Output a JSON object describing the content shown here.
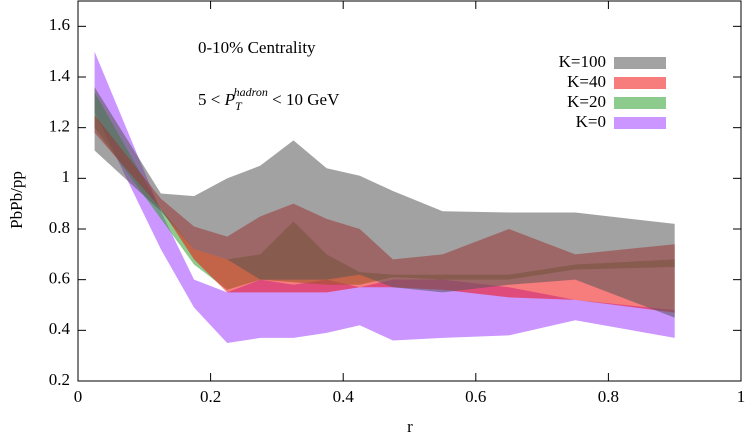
{
  "chart_data": {
    "type": "band",
    "x_label": "r",
    "y_label": "PbPb/pp",
    "annotations": [
      "0-10% Centrality",
      [
        "5 < ",
        "P",
        "T",
        "hadron",
        " < 10 GeV"
      ]
    ],
    "x": [
      0.025,
      0.125,
      0.175,
      0.225,
      0.275,
      0.325,
      0.375,
      0.425,
      0.475,
      0.55,
      0.65,
      0.75,
      0.9
    ],
    "series": [
      {
        "name": "K=100",
        "color": "#555555",
        "upper": [
          1.36,
          0.94,
          0.93,
          1.0,
          1.05,
          1.15,
          1.04,
          1.01,
          0.95,
          0.87,
          0.865,
          0.865,
          0.82
        ],
        "lower": [
          1.11,
          0.87,
          0.72,
          0.68,
          0.6,
          0.6,
          0.6,
          0.62,
          0.57,
          0.55,
          0.58,
          0.6,
          0.45
        ]
      },
      {
        "name": "K=40",
        "color": "#f01010",
        "upper": [
          1.25,
          0.92,
          0.81,
          0.77,
          0.85,
          0.9,
          0.84,
          0.8,
          0.68,
          0.7,
          0.8,
          0.7,
          0.74
        ],
        "lower": [
          1.18,
          0.88,
          0.68,
          0.55,
          0.55,
          0.55,
          0.55,
          0.57,
          0.57,
          0.56,
          0.53,
          0.52,
          0.47
        ]
      },
      {
        "name": "K=20",
        "color": "#30a030",
        "upper": [
          1.34,
          0.88,
          0.72,
          0.68,
          0.7,
          0.83,
          0.7,
          0.63,
          0.62,
          0.62,
          0.62,
          0.66,
          0.68
        ],
        "lower": [
          1.2,
          0.84,
          0.66,
          0.56,
          0.6,
          0.59,
          0.58,
          0.58,
          0.61,
          0.6,
          0.6,
          0.64,
          0.65
        ]
      },
      {
        "name": "K=0",
        "color": "#a040ff",
        "upper": [
          1.5,
          0.87,
          0.6,
          0.55,
          0.6,
          0.58,
          0.6,
          0.57,
          0.6,
          0.6,
          0.57,
          0.52,
          0.48
        ],
        "lower": [
          1.26,
          0.72,
          0.49,
          0.35,
          0.37,
          0.37,
          0.39,
          0.42,
          0.36,
          0.37,
          0.38,
          0.44,
          0.37
        ]
      }
    ],
    "xlim": [
      0,
      1
    ],
    "ylim": [
      0.2,
      1.7
    ],
    "xticks": [
      0,
      0.2,
      0.4,
      0.6,
      0.8,
      1
    ],
    "yticks": [
      0.2,
      0.4,
      0.6,
      0.8,
      1,
      1.2,
      1.4,
      1.6
    ],
    "legend": "upper right",
    "opacity": 0.55
  }
}
